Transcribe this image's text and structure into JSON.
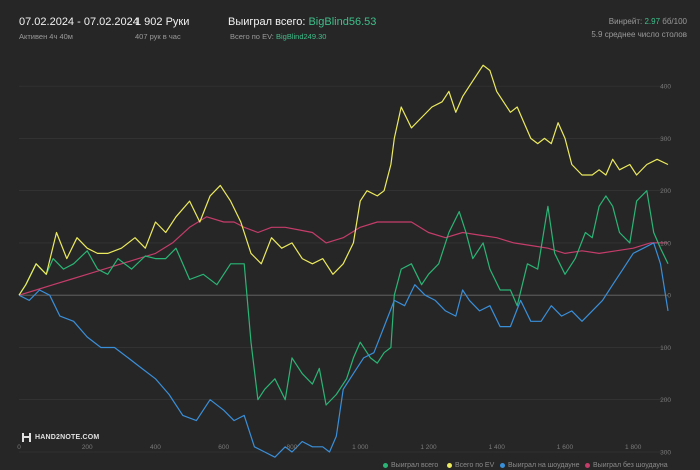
{
  "header": {
    "date_range": "07.02.2024 - 07.02.2024",
    "active_time": "Активен 4ч 40м",
    "hands": "1 902 Руки",
    "hands_per_hour": "407 рук в час",
    "won_total_label": "Выиграл всего:",
    "won_total_value": "BigBlind56.53",
    "ev_total_label": "Всего по EV:",
    "ev_total_value": "BigBlind249.30",
    "winrate_label": "Винрейт:",
    "winrate_value": "2.97",
    "winrate_suffix": "бб/100",
    "avg_tables": "5.9 среднее число столов"
  },
  "logo_text": "HAND2NOTE.COM",
  "colors": {
    "background": "#262626",
    "grid": "#3a3a3a",
    "zero_line": "#6a6a6a",
    "axis_text": "#7a7a7a",
    "accent": "#3fbf8a"
  },
  "chart_data": {
    "type": "line",
    "x_ticks": [
      0,
      200,
      400,
      600,
      800,
      1000,
      1200,
      1400,
      1600,
      1800
    ],
    "x_tick_labels": [
      "0",
      "200",
      "400",
      "600",
      "800",
      "1 000",
      "1 200",
      "1 400",
      "1 600",
      "1 800"
    ],
    "y_ticks": [
      -300,
      -200,
      -100,
      0,
      100,
      200,
      300,
      400
    ],
    "y_tick_labels": [
      "300",
      "200",
      "100",
      "0",
      "100",
      "200",
      "300",
      "400"
    ],
    "xlim": [
      0,
      1902
    ],
    "ylim": [
      -300,
      450
    ],
    "grid": true,
    "legend_position": "bottom-right",
    "series": [
      {
        "name": "Выиграл всего",
        "color": "#2ab576",
        "points": [
          [
            0,
            0
          ],
          [
            20,
            20
          ],
          [
            50,
            60
          ],
          [
            80,
            40
          ],
          [
            100,
            70
          ],
          [
            130,
            50
          ],
          [
            160,
            60
          ],
          [
            200,
            85
          ],
          [
            230,
            50
          ],
          [
            260,
            40
          ],
          [
            290,
            70
          ],
          [
            330,
            50
          ],
          [
            370,
            75
          ],
          [
            400,
            70
          ],
          [
            430,
            70
          ],
          [
            460,
            90
          ],
          [
            500,
            30
          ],
          [
            540,
            40
          ],
          [
            580,
            20
          ],
          [
            620,
            60
          ],
          [
            660,
            60
          ],
          [
            680,
            -90
          ],
          [
            700,
            -200
          ],
          [
            720,
            -180
          ],
          [
            750,
            -160
          ],
          [
            780,
            -200
          ],
          [
            800,
            -120
          ],
          [
            830,
            -150
          ],
          [
            860,
            -170
          ],
          [
            880,
            -140
          ],
          [
            900,
            -210
          ],
          [
            930,
            -190
          ],
          [
            960,
            -160
          ],
          [
            980,
            -120
          ],
          [
            1000,
            -90
          ],
          [
            1030,
            -120
          ],
          [
            1050,
            -130
          ],
          [
            1070,
            -110
          ],
          [
            1090,
            -100
          ],
          [
            1100,
            0
          ],
          [
            1120,
            50
          ],
          [
            1150,
            60
          ],
          [
            1180,
            20
          ],
          [
            1200,
            40
          ],
          [
            1230,
            60
          ],
          [
            1260,
            120
          ],
          [
            1290,
            160
          ],
          [
            1310,
            120
          ],
          [
            1330,
            70
          ],
          [
            1360,
            100
          ],
          [
            1380,
            50
          ],
          [
            1410,
            10
          ],
          [
            1440,
            10
          ],
          [
            1460,
            -20
          ],
          [
            1490,
            60
          ],
          [
            1520,
            50
          ],
          [
            1550,
            170
          ],
          [
            1570,
            80
          ],
          [
            1600,
            40
          ],
          [
            1630,
            70
          ],
          [
            1660,
            120
          ],
          [
            1680,
            110
          ],
          [
            1700,
            170
          ],
          [
            1720,
            190
          ],
          [
            1740,
            170
          ],
          [
            1760,
            120
          ],
          [
            1790,
            100
          ],
          [
            1810,
            180
          ],
          [
            1840,
            200
          ],
          [
            1860,
            120
          ],
          [
            1880,
            90
          ],
          [
            1902,
            60
          ]
        ]
      },
      {
        "name": "Всего по EV",
        "color": "#ecea5e",
        "points": [
          [
            0,
            0
          ],
          [
            20,
            20
          ],
          [
            50,
            60
          ],
          [
            80,
            40
          ],
          [
            110,
            120
          ],
          [
            140,
            70
          ],
          [
            170,
            110
          ],
          [
            200,
            90
          ],
          [
            230,
            80
          ],
          [
            260,
            80
          ],
          [
            300,
            90
          ],
          [
            340,
            110
          ],
          [
            370,
            90
          ],
          [
            400,
            140
          ],
          [
            430,
            120
          ],
          [
            460,
            150
          ],
          [
            500,
            180
          ],
          [
            530,
            140
          ],
          [
            560,
            190
          ],
          [
            590,
            210
          ],
          [
            620,
            180
          ],
          [
            650,
            140
          ],
          [
            680,
            80
          ],
          [
            710,
            60
          ],
          [
            740,
            110
          ],
          [
            770,
            90
          ],
          [
            800,
            100
          ],
          [
            830,
            70
          ],
          [
            860,
            60
          ],
          [
            890,
            70
          ],
          [
            920,
            40
          ],
          [
            950,
            60
          ],
          [
            980,
            100
          ],
          [
            1000,
            180
          ],
          [
            1020,
            200
          ],
          [
            1050,
            190
          ],
          [
            1070,
            200
          ],
          [
            1090,
            250
          ],
          [
            1100,
            300
          ],
          [
            1120,
            360
          ],
          [
            1150,
            320
          ],
          [
            1180,
            340
          ],
          [
            1210,
            360
          ],
          [
            1240,
            370
          ],
          [
            1260,
            390
          ],
          [
            1280,
            350
          ],
          [
            1300,
            380
          ],
          [
            1320,
            400
          ],
          [
            1340,
            420
          ],
          [
            1360,
            440
          ],
          [
            1380,
            430
          ],
          [
            1400,
            390
          ],
          [
            1420,
            370
          ],
          [
            1440,
            350
          ],
          [
            1460,
            360
          ],
          [
            1480,
            330
          ],
          [
            1500,
            300
          ],
          [
            1520,
            290
          ],
          [
            1540,
            300
          ],
          [
            1560,
            290
          ],
          [
            1580,
            330
          ],
          [
            1600,
            300
          ],
          [
            1620,
            250
          ],
          [
            1650,
            230
          ],
          [
            1680,
            230
          ],
          [
            1700,
            240
          ],
          [
            1720,
            230
          ],
          [
            1740,
            260
          ],
          [
            1760,
            240
          ],
          [
            1790,
            250
          ],
          [
            1810,
            230
          ],
          [
            1840,
            250
          ],
          [
            1870,
            260
          ],
          [
            1902,
            250
          ]
        ]
      },
      {
        "name": "Выиграл на шоудауне",
        "color": "#3a8fd9",
        "points": [
          [
            0,
            0
          ],
          [
            30,
            -10
          ],
          [
            60,
            10
          ],
          [
            90,
            0
          ],
          [
            120,
            -40
          ],
          [
            160,
            -50
          ],
          [
            200,
            -80
          ],
          [
            240,
            -100
          ],
          [
            280,
            -100
          ],
          [
            320,
            -120
          ],
          [
            360,
            -140
          ],
          [
            400,
            -160
          ],
          [
            440,
            -190
          ],
          [
            480,
            -230
          ],
          [
            520,
            -240
          ],
          [
            560,
            -200
          ],
          [
            600,
            -220
          ],
          [
            630,
            -240
          ],
          [
            660,
            -230
          ],
          [
            690,
            -290
          ],
          [
            720,
            -300
          ],
          [
            750,
            -310
          ],
          [
            780,
            -290
          ],
          [
            800,
            -300
          ],
          [
            830,
            -280
          ],
          [
            860,
            -290
          ],
          [
            890,
            -290
          ],
          [
            910,
            -300
          ],
          [
            930,
            -270
          ],
          [
            950,
            -180
          ],
          [
            980,
            -150
          ],
          [
            1010,
            -120
          ],
          [
            1040,
            -110
          ],
          [
            1070,
            -60
          ],
          [
            1100,
            -10
          ],
          [
            1130,
            -20
          ],
          [
            1160,
            20
          ],
          [
            1190,
            0
          ],
          [
            1220,
            -10
          ],
          [
            1250,
            -30
          ],
          [
            1280,
            -40
          ],
          [
            1300,
            10
          ],
          [
            1320,
            -10
          ],
          [
            1350,
            -30
          ],
          [
            1380,
            -20
          ],
          [
            1410,
            -60
          ],
          [
            1440,
            -60
          ],
          [
            1470,
            -10
          ],
          [
            1500,
            -50
          ],
          [
            1530,
            -50
          ],
          [
            1560,
            -20
          ],
          [
            1590,
            -40
          ],
          [
            1620,
            -30
          ],
          [
            1650,
            -50
          ],
          [
            1680,
            -30
          ],
          [
            1710,
            -10
          ],
          [
            1740,
            20
          ],
          [
            1770,
            50
          ],
          [
            1800,
            80
          ],
          [
            1830,
            90
          ],
          [
            1860,
            100
          ],
          [
            1880,
            60
          ],
          [
            1902,
            -30
          ]
        ]
      },
      {
        "name": "Выиграл без шоудауна",
        "color": "#c53c6b",
        "points": [
          [
            0,
            0
          ],
          [
            50,
            10
          ],
          [
            100,
            20
          ],
          [
            150,
            30
          ],
          [
            200,
            40
          ],
          [
            250,
            50
          ],
          [
            300,
            60
          ],
          [
            350,
            70
          ],
          [
            400,
            80
          ],
          [
            450,
            100
          ],
          [
            500,
            130
          ],
          [
            550,
            150
          ],
          [
            600,
            140
          ],
          [
            630,
            140
          ],
          [
            660,
            130
          ],
          [
            700,
            120
          ],
          [
            740,
            130
          ],
          [
            780,
            130
          ],
          [
            820,
            125
          ],
          [
            860,
            120
          ],
          [
            900,
            100
          ],
          [
            950,
            110
          ],
          [
            1000,
            130
          ],
          [
            1050,
            140
          ],
          [
            1100,
            140
          ],
          [
            1150,
            140
          ],
          [
            1200,
            120
          ],
          [
            1250,
            110
          ],
          [
            1300,
            120
          ],
          [
            1350,
            115
          ],
          [
            1400,
            110
          ],
          [
            1450,
            100
          ],
          [
            1500,
            95
          ],
          [
            1550,
            90
          ],
          [
            1600,
            80
          ],
          [
            1650,
            85
          ],
          [
            1700,
            80
          ],
          [
            1750,
            85
          ],
          [
            1800,
            90
          ],
          [
            1850,
            100
          ],
          [
            1902,
            100
          ]
        ]
      }
    ]
  }
}
